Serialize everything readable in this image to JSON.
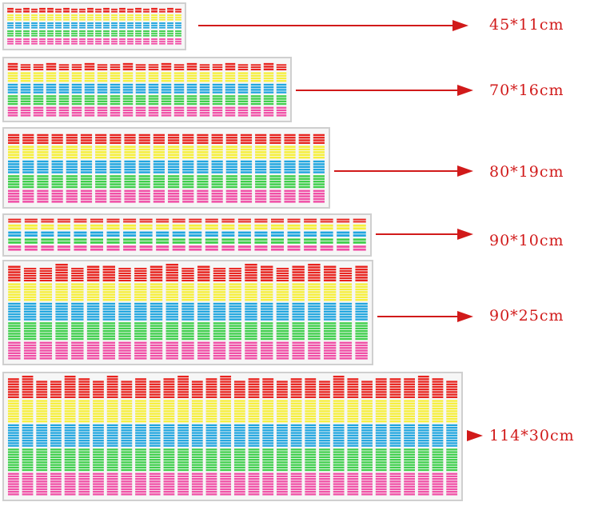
{
  "colors": {
    "red": "#e8231e",
    "yellow": "#f6ef3a",
    "cyan": "#21a6df",
    "green": "#3fcf4c",
    "pink": "#f04fa6",
    "arrow": "#d11a1a",
    "frame": "#cfcfcf",
    "panel_bg": "#f6f6f6"
  },
  "panels": [
    {
      "size_label": "45*11cm",
      "levels": [
        7,
        6,
        7,
        6,
        7,
        7,
        6,
        7,
        6,
        6,
        7,
        6,
        7,
        6,
        7,
        6,
        7,
        6,
        7,
        6,
        7,
        6
      ],
      "band_fraction": 1.0
    },
    {
      "size_label": "70*16cm",
      "levels": [
        7,
        6,
        6,
        7,
        6,
        6,
        7,
        6,
        6,
        7,
        6,
        6,
        7,
        6,
        7,
        6,
        6,
        7,
        6,
        6,
        7,
        6
      ],
      "band_fraction": 1.0
    },
    {
      "size_label": "80*19cm",
      "levels": [
        7,
        7,
        7,
        7,
        7,
        7,
        7,
        7,
        7,
        7,
        7,
        7,
        7,
        7,
        7,
        7,
        7,
        7,
        7,
        7,
        7,
        7
      ],
      "band_fraction": 1.0
    },
    {
      "size_label": "90*10cm",
      "levels": [
        7,
        7,
        7,
        7,
        7,
        7,
        7,
        7,
        7,
        7,
        7,
        7,
        7,
        7,
        7,
        7,
        7,
        7,
        7,
        7,
        7,
        7
      ],
      "band_fraction": 1.0
    },
    {
      "size_label": "90*25cm",
      "levels": [
        8,
        7,
        7,
        9,
        7,
        8,
        8,
        7,
        7,
        8,
        9,
        7,
        8,
        7,
        7,
        9,
        8,
        7,
        8,
        9,
        8,
        7,
        8
      ],
      "band_fraction": 1.0
    },
    {
      "size_label": "114*30cm",
      "levels": [
        8,
        9,
        7,
        7,
        9,
        8,
        7,
        9,
        7,
        8,
        7,
        8,
        9,
        7,
        8,
        9,
        7,
        8,
        8,
        7,
        8,
        8,
        7,
        9,
        8,
        7,
        8,
        8,
        8,
        9,
        8,
        7
      ],
      "band_fraction": 1.0
    }
  ]
}
